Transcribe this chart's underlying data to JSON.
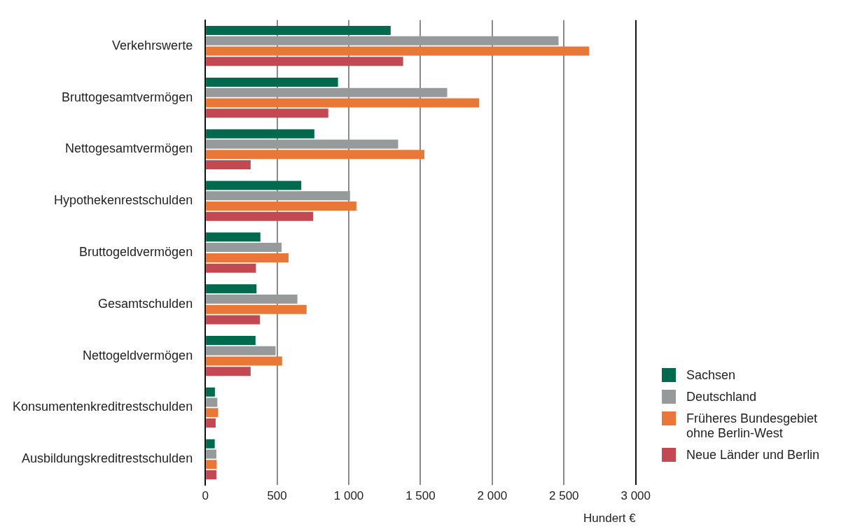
{
  "chart_data": {
    "type": "bar",
    "orientation": "horizontal",
    "xlabel": "Hundert €",
    "categories": [
      "Verkehrswerte",
      "Bruttogesamtvermögen",
      "Nettogesamtvermögen",
      "Hypothekenrestschulden",
      "Bruttogeldvermögen",
      "Gesamtschulden",
      "Nettogeldvermögen",
      "Konsumentenkreditrestschulden",
      "Ausbildungskreditrestschulden"
    ],
    "series": [
      {
        "name": "Sachsen",
        "color": "#006a4e",
        "values": [
          1292,
          925,
          760,
          669,
          384,
          357,
          350,
          67,
          66
        ]
      },
      {
        "name": "Deutschland",
        "color": "#979a9a",
        "values": [
          2462,
          1686,
          1344,
          1009,
          532,
          642,
          490,
          84,
          77
        ]
      },
      {
        "name": "Früheres Bundesgebiet ohne Berlin-West",
        "color": "#e97838",
        "values": [
          2675,
          1909,
          1527,
          1053,
          580,
          706,
          535,
          89,
          79
        ]
      },
      {
        "name": "Neue Länder und Berlin",
        "color": "#c44851",
        "values": [
          1379,
          857,
          316,
          751,
          353,
          380,
          316,
          72,
          77
        ]
      }
    ],
    "xlim": [
      0,
      3000
    ],
    "xticks": [
      0,
      500,
      {
        "value": 1000,
        "label": "1 000"
      },
      {
        "value": 1500,
        "label": "1 500"
      },
      {
        "value": 2000,
        "label": "2 000"
      },
      {
        "value": 2500,
        "label": "2 500"
      },
      {
        "value": 3000,
        "label": "3 000"
      }
    ],
    "grid": "x",
    "legend": "bottom right"
  }
}
